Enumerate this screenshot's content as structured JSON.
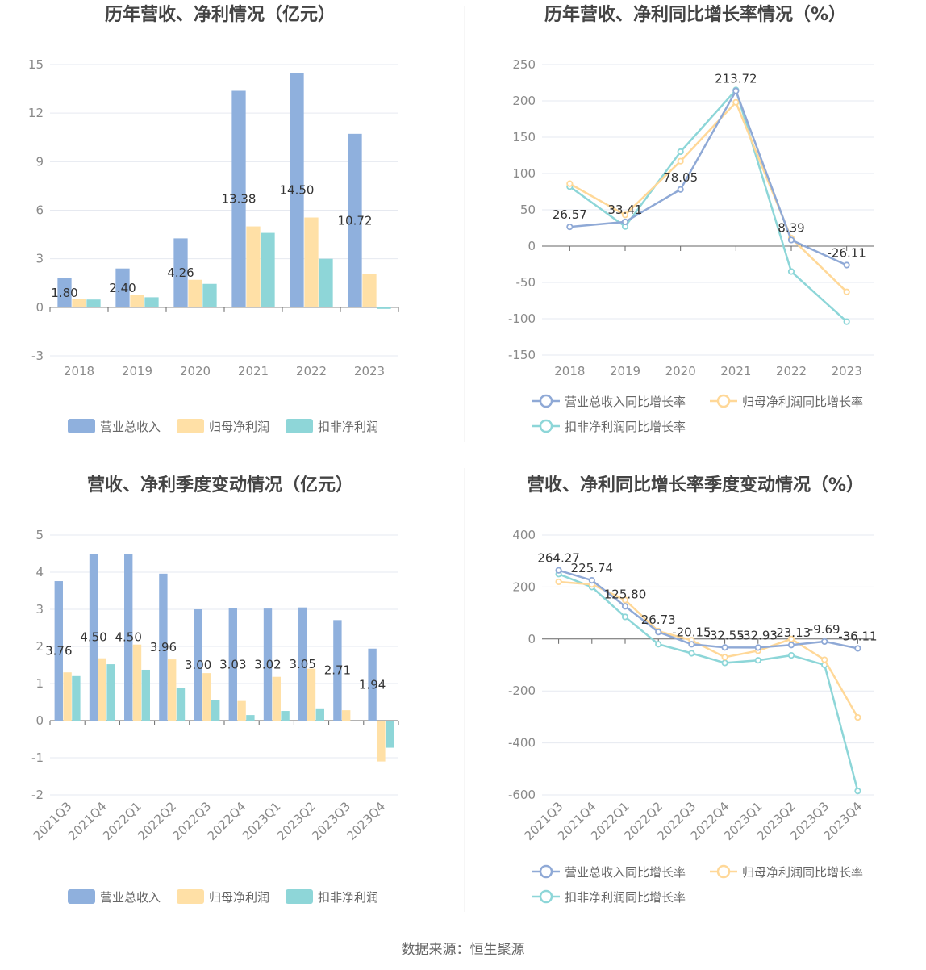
{
  "colors": {
    "revenue": "#8fb0dd",
    "net_profit": "#ffe0a6",
    "deducted_profit": "#8ed6d8"
  },
  "source": "数据来源：恒生聚源",
  "chart_data": [
    {
      "type": "bar",
      "title": "历年营收、净利情况（亿元）",
      "categories": [
        "2018",
        "2019",
        "2020",
        "2021",
        "2022",
        "2023"
      ],
      "ylim": [
        -3,
        15
      ],
      "yticks": [
        "15",
        "12",
        "9",
        "6",
        "3",
        "0",
        "-3"
      ],
      "ytick_values": [
        15,
        12,
        9,
        6,
        3,
        0,
        -3
      ],
      "legend_position": "bottom",
      "series": [
        {
          "name": "营业总收入",
          "values": [
            1.8,
            2.4,
            4.26,
            13.38,
            14.5,
            10.72
          ],
          "labels": [
            "1.80",
            "2.40",
            "4.26",
            "13.38",
            "14.50",
            "10.72"
          ]
        },
        {
          "name": "归母净利润",
          "values": [
            0.52,
            0.78,
            1.7,
            5.0,
            5.55,
            2.05
          ]
        },
        {
          "name": "扣非净利润",
          "values": [
            0.48,
            0.62,
            1.45,
            4.6,
            3.0,
            -0.1
          ]
        }
      ]
    },
    {
      "type": "line",
      "title": "历年营收、净利同比增长率情况（%）",
      "categories": [
        "2018",
        "2019",
        "2020",
        "2021",
        "2022",
        "2023"
      ],
      "ylim": [
        -150,
        250
      ],
      "yticks": [
        "250",
        "200",
        "150",
        "100",
        "50",
        "0",
        "-50",
        "-100",
        "-150"
      ],
      "ytick_values": [
        250,
        200,
        150,
        100,
        50,
        0,
        -50,
        -100,
        -150
      ],
      "legend_position": "bottom",
      "series": [
        {
          "name": "营业总收入同比增长率",
          "values": [
            26.57,
            33.41,
            78.05,
            213.72,
            8.39,
            -26.11
          ],
          "labels": [
            "26.57",
            "33.41",
            "78.05",
            "213.72",
            "8.39",
            "-26.11"
          ]
        },
        {
          "name": "归母净利润同比增长率",
          "values": [
            86,
            43,
            117,
            198,
            11,
            -63
          ]
        },
        {
          "name": "扣非净利润同比增长率",
          "values": [
            82,
            27,
            130,
            215,
            -35,
            -104
          ]
        }
      ]
    },
    {
      "type": "bar",
      "title": "营收、净利季度变动情况（亿元）",
      "categories": [
        "2021Q3",
        "2021Q4",
        "2022Q1",
        "2022Q2",
        "2022Q3",
        "2022Q4",
        "2023Q1",
        "2023Q2",
        "2023Q3",
        "2023Q4"
      ],
      "ylim": [
        -2,
        5
      ],
      "yticks": [
        "5",
        "4",
        "3",
        "2",
        "1",
        "0",
        "-1",
        "-2"
      ],
      "ytick_values": [
        5,
        4,
        3,
        2,
        1,
        0,
        -1,
        -2
      ],
      "legend_position": "bottom",
      "series": [
        {
          "name": "营业总收入",
          "values": [
            3.76,
            4.5,
            4.5,
            3.96,
            3.0,
            3.03,
            3.02,
            3.05,
            2.71,
            1.94
          ],
          "labels": [
            "3.76",
            "4.50",
            "4.50",
            "3.96",
            "3.00",
            "3.03",
            "3.02",
            "3.05",
            "2.71",
            "1.94"
          ]
        },
        {
          "name": "归母净利润",
          "values": [
            1.3,
            1.68,
            2.05,
            1.65,
            1.28,
            0.53,
            1.18,
            1.4,
            0.28,
            -1.1
          ]
        },
        {
          "name": "扣非净利润",
          "values": [
            1.2,
            1.52,
            1.37,
            0.88,
            0.55,
            0.15,
            0.26,
            0.33,
            0.0,
            -0.73
          ]
        }
      ]
    },
    {
      "type": "line",
      "title": "营收、净利同比增长率季度变动情况（%）",
      "categories": [
        "2021Q3",
        "2021Q4",
        "2022Q1",
        "2022Q2",
        "2022Q3",
        "2022Q4",
        "2023Q1",
        "2023Q2",
        "2023Q3",
        "2023Q4"
      ],
      "ylim": [
        -600,
        400
      ],
      "yticks": [
        "400",
        "200",
        "0",
        "-200",
        "-400",
        "-600"
      ],
      "ytick_values": [
        400,
        200,
        0,
        -200,
        -400,
        -600
      ],
      "legend_position": "bottom",
      "series": [
        {
          "name": "营业总收入同比增长率",
          "values": [
            264.27,
            225.74,
            125.8,
            26.73,
            -20.15,
            -32.55,
            -32.93,
            -23.13,
            -9.69,
            -36.11
          ],
          "labels": [
            "264.27",
            "225.74",
            "125.80",
            "26.73",
            "-20.15",
            "-32.55",
            "-32.93",
            "-23.13",
            "-9.69",
            "-36.11"
          ]
        },
        {
          "name": "归母净利润同比增长率",
          "values": [
            220,
            210,
            150,
            30,
            -5,
            -70,
            -45,
            0,
            -80,
            -302
          ]
        },
        {
          "name": "扣非净利润同比增长率",
          "values": [
            250,
            200,
            85,
            -20,
            -55,
            -92,
            -82,
            -63,
            -100,
            -585
          ]
        }
      ]
    }
  ]
}
